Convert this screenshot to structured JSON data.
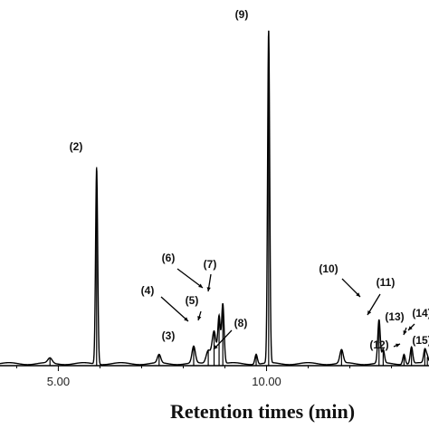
{
  "chart_data": {
    "type": "line",
    "title": "",
    "xlabel": "Retention times (min)",
    "ylabel": "",
    "xlim": [
      3.6,
      13.9
    ],
    "ylim": [
      0,
      100
    ],
    "x_ticks": [
      {
        "value": 5.0,
        "label": "5.00"
      },
      {
        "value": 10.0,
        "label": "10.00"
      }
    ],
    "grid": false,
    "legend": "none",
    "line_color": "#000000",
    "peaks": [
      {
        "label": "",
        "rt": 4.8,
        "height": 1.5,
        "width": 0.05
      },
      {
        "label": "(2)",
        "rt": 5.92,
        "height": 59,
        "width": 0.025
      },
      {
        "label": "",
        "rt": 7.42,
        "height": 2.5,
        "width": 0.04
      },
      {
        "label": "(3)",
        "rt": 8.25,
        "height": 5,
        "width": 0.04
      },
      {
        "label": "(4)",
        "rt": 8.6,
        "height": 4,
        "width": 0.05
      },
      {
        "label": "(5)",
        "rt": 8.74,
        "height": 10,
        "width": 0.05
      },
      {
        "label": "(6)",
        "rt": 8.86,
        "height": 14,
        "width": 0.03
      },
      {
        "label": "(7)",
        "rt": 8.95,
        "height": 18,
        "width": 0.03
      },
      {
        "label": "(8)",
        "rt": 9.75,
        "height": 3,
        "width": 0.03
      },
      {
        "label": "(9)",
        "rt": 10.05,
        "height": 100,
        "width": 0.025
      },
      {
        "label": "",
        "rt": 11.8,
        "height": 4,
        "width": 0.04
      },
      {
        "label": "(10)",
        "rt": 12.7,
        "height": 13,
        "width": 0.03
      },
      {
        "label": "(11)",
        "rt": 12.8,
        "height": 4,
        "width": 0.03
      },
      {
        "label": "(12)",
        "rt": 13.3,
        "height": 3,
        "width": 0.03
      },
      {
        "label": "(13)",
        "rt": 13.48,
        "height": 5,
        "width": 0.03
      },
      {
        "label": "(14)",
        "rt": 13.8,
        "height": 4,
        "width": 0.03
      },
      {
        "label": "(15)",
        "rt": 13.86,
        "height": 2,
        "width": 0.03
      }
    ],
    "annotations": [
      {
        "text": "(2)"
      },
      {
        "text": "(3)"
      },
      {
        "text": "(4)"
      },
      {
        "text": "(5)"
      },
      {
        "text": "(6)"
      },
      {
        "text": "(7)"
      },
      {
        "text": "(8)"
      },
      {
        "text": "(9)"
      },
      {
        "text": "(10)"
      },
      {
        "text": "(11)"
      },
      {
        "text": "(12)"
      },
      {
        "text": "(13)"
      },
      {
        "text": "(14)"
      },
      {
        "text": "(15)"
      }
    ]
  }
}
